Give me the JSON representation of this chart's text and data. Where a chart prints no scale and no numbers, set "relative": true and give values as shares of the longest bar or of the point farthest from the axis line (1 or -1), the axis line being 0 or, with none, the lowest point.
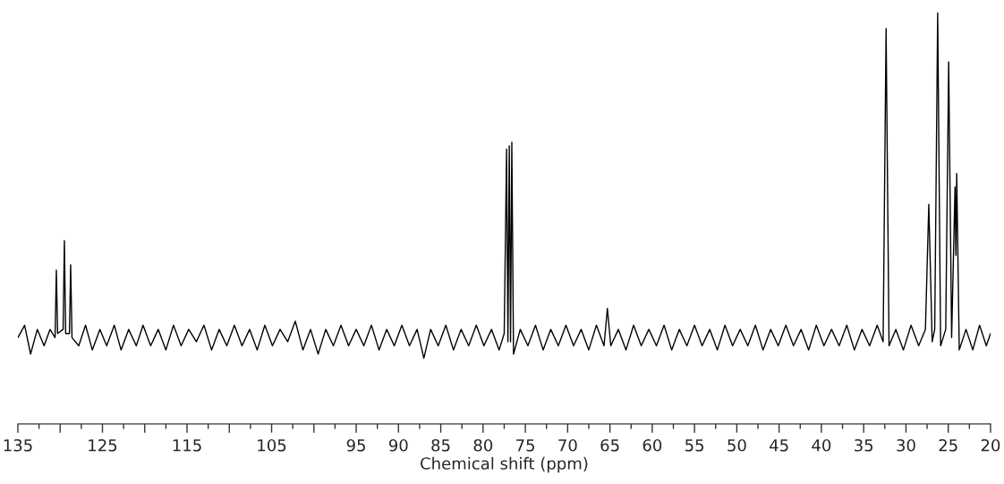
{
  "chart_data": {
    "type": "line",
    "xlabel": "Chemical shift (ppm)",
    "relative": true,
    "xlim": [
      135,
      20
    ],
    "xticks": [
      135,
      {
        "value": 130,
        "label": null
      },
      125,
      {
        "value": 120,
        "label": null
      },
      115,
      {
        "value": 110,
        "label": null
      },
      105,
      {
        "value": 100,
        "label": null
      },
      95,
      90,
      85,
      80,
      75,
      70,
      65,
      60,
      55,
      50,
      45,
      40,
      35,
      30,
      25,
      20
    ],
    "x": [
      135,
      134.2,
      133.5,
      132.7,
      131.9,
      131.2,
      130.6,
      130.45,
      130.3,
      129.65,
      129.5,
      129.35,
      128.9,
      128.76,
      128.6,
      127.8,
      127.0,
      126.2,
      125.3,
      124.5,
      123.6,
      122.8,
      121.9,
      121.0,
      120.2,
      119.3,
      118.4,
      117.5,
      116.6,
      115.7,
      114.8,
      113.9,
      113.0,
      112.1,
      111.2,
      110.3,
      109.4,
      108.5,
      107.6,
      106.7,
      105.8,
      104.9,
      104.0,
      103.1,
      102.2,
      101.3,
      100.4,
      99.5,
      98.6,
      97.7,
      96.8,
      95.9,
      95.0,
      94.1,
      93.2,
      92.3,
      91.4,
      90.5,
      89.6,
      88.7,
      87.8,
      87.0,
      86.2,
      85.3,
      84.4,
      83.5,
      82.6,
      81.7,
      80.8,
      79.9,
      79.0,
      78.1,
      77.5,
      77.22,
      77.06,
      76.9,
      76.75,
      76.6,
      76.4,
      75.6,
      74.7,
      73.8,
      72.9,
      72.0,
      71.1,
      70.2,
      69.3,
      68.4,
      67.5,
      66.6,
      65.7,
      65.3,
      64.9,
      64.0,
      63.1,
      62.2,
      61.3,
      60.4,
      59.5,
      58.6,
      57.7,
      56.8,
      55.9,
      55.0,
      54.1,
      53.2,
      52.3,
      51.4,
      50.5,
      49.6,
      48.7,
      47.8,
      46.9,
      46.0,
      45.1,
      44.2,
      43.3,
      42.4,
      41.5,
      40.6,
      39.7,
      38.8,
      37.9,
      37.0,
      36.1,
      35.2,
      34.3,
      33.4,
      32.7,
      32.35,
      32.0,
      31.2,
      30.3,
      29.4,
      28.5,
      27.7,
      27.3,
      26.9,
      26.6,
      26.25,
      25.9,
      25.3,
      24.95,
      24.6,
      24.2,
      24.1,
      24.0,
      23.7,
      22.9,
      22.1,
      21.3,
      20.5,
      20
    ],
    "series": [
      {
        "color": "#000000",
        "values": [
          0.21,
          0.24,
          0.17,
          0.23,
          0.19,
          0.23,
          0.21,
          0.374,
          0.22,
          0.23,
          0.446,
          0.22,
          0.22,
          0.387,
          0.21,
          0.19,
          0.24,
          0.18,
          0.23,
          0.19,
          0.24,
          0.18,
          0.23,
          0.19,
          0.24,
          0.19,
          0.23,
          0.18,
          0.24,
          0.19,
          0.23,
          0.2,
          0.24,
          0.18,
          0.23,
          0.19,
          0.24,
          0.19,
          0.23,
          0.18,
          0.24,
          0.19,
          0.23,
          0.2,
          0.25,
          0.18,
          0.23,
          0.17,
          0.23,
          0.19,
          0.24,
          0.19,
          0.23,
          0.19,
          0.24,
          0.18,
          0.23,
          0.19,
          0.24,
          0.19,
          0.23,
          0.16,
          0.23,
          0.19,
          0.24,
          0.18,
          0.23,
          0.19,
          0.24,
          0.19,
          0.23,
          0.18,
          0.22,
          0.668,
          0.2,
          0.676,
          0.2,
          0.685,
          0.17,
          0.23,
          0.19,
          0.24,
          0.18,
          0.23,
          0.19,
          0.24,
          0.19,
          0.23,
          0.18,
          0.24,
          0.19,
          0.281,
          0.19,
          0.23,
          0.18,
          0.24,
          0.19,
          0.23,
          0.19,
          0.24,
          0.18,
          0.23,
          0.19,
          0.24,
          0.19,
          0.23,
          0.18,
          0.24,
          0.19,
          0.23,
          0.19,
          0.24,
          0.18,
          0.23,
          0.19,
          0.24,
          0.19,
          0.23,
          0.18,
          0.24,
          0.19,
          0.23,
          0.19,
          0.24,
          0.18,
          0.23,
          0.19,
          0.24,
          0.2,
          0.961,
          0.19,
          0.23,
          0.18,
          0.24,
          0.19,
          0.23,
          0.534,
          0.2,
          0.23,
          1,
          0.19,
          0.23,
          0.88,
          0.21,
          0.576,
          0.41,
          0.609,
          0.18,
          0.23,
          0.18,
          0.24,
          0.19,
          0.22
        ]
      }
    ]
  }
}
